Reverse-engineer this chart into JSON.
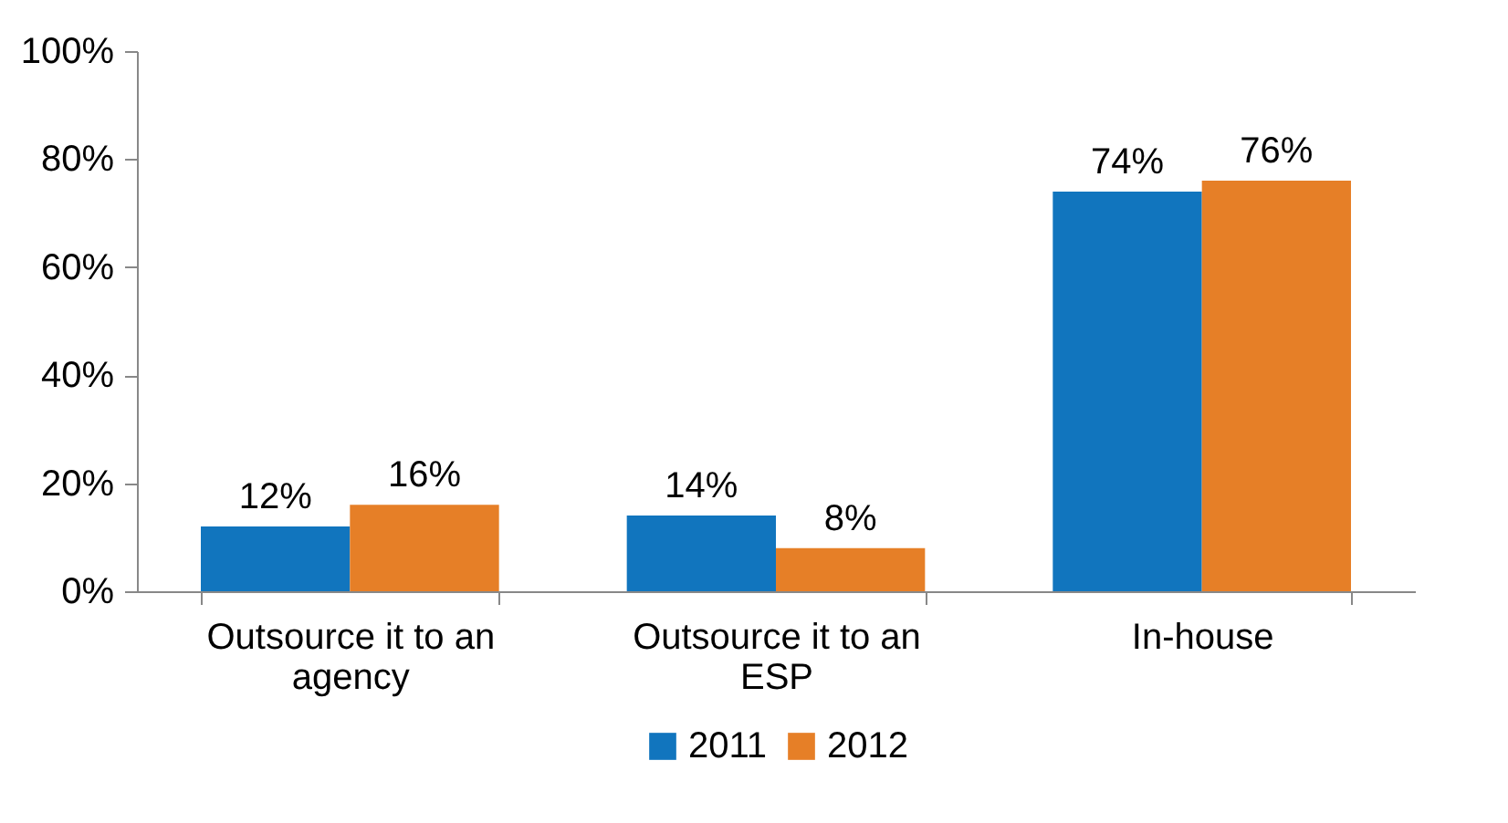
{
  "chart_data": {
    "type": "bar",
    "categories": [
      "Outsource it to an agency",
      "Outsource it to an ESP",
      "In-house"
    ],
    "series": [
      {
        "name": "2011",
        "color": "#1175be",
        "values": [
          12,
          14,
          74
        ],
        "value_labels": [
          "12%",
          "14%",
          "74%"
        ]
      },
      {
        "name": "2012",
        "color": "#e67f27",
        "values": [
          16,
          8,
          76
        ],
        "value_labels": [
          "16%",
          "8%",
          "76%"
        ]
      }
    ],
    "ylim": [
      0,
      100
    ],
    "yticks": [
      {
        "value": 0,
        "label": "0%"
      },
      {
        "value": 20,
        "label": "20%"
      },
      {
        "value": 40,
        "label": "40%"
      },
      {
        "value": 60,
        "label": "60%"
      },
      {
        "value": 80,
        "label": "80%"
      },
      {
        "value": 100,
        "label": "100%"
      }
    ],
    "grid": false,
    "legend": "bottom"
  }
}
